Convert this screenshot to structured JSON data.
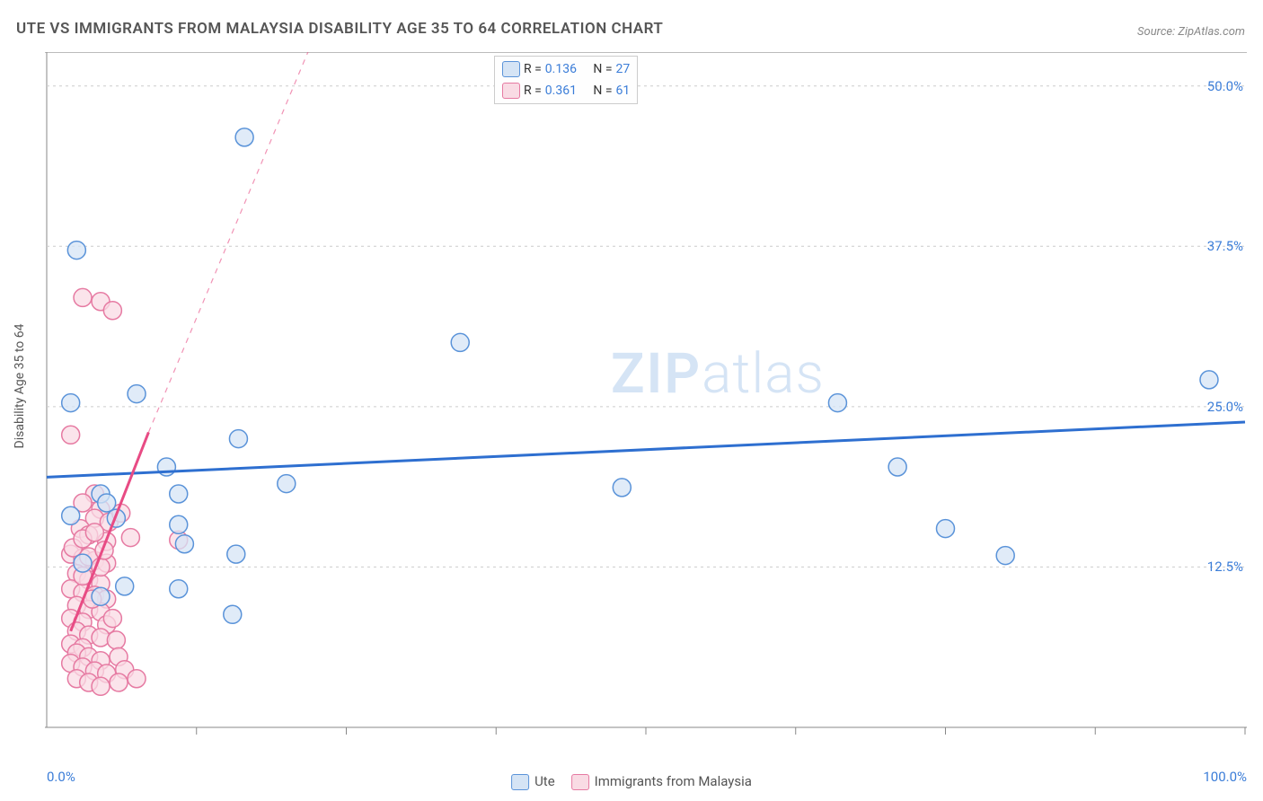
{
  "title": "UTE VS IMMIGRANTS FROM MALAYSIA DISABILITY AGE 35 TO 64 CORRELATION CHART",
  "source": "Source: ZipAtlas.com",
  "y_axis_label": "Disability Age 35 to 64",
  "watermark_bold": "ZIP",
  "watermark_light": "atlas",
  "chart": {
    "type": "scatter",
    "xlim": [
      0,
      100
    ],
    "ylim": [
      0,
      52.5
    ],
    "x_ticks": {
      "min": "0.0%",
      "max": "100.0%"
    },
    "y_ticks": [
      {
        "value": 12.5,
        "label": "12.5%"
      },
      {
        "value": 25.0,
        "label": "25.0%"
      },
      {
        "value": 37.5,
        "label": "37.5%"
      },
      {
        "value": 50.0,
        "label": "50.0%"
      }
    ],
    "x_grid_minor": [
      12.5,
      25,
      37.5,
      50,
      62.5,
      75,
      87.5,
      100
    ],
    "series": [
      {
        "name": "Ute",
        "marker_fill": "#d5e4f5",
        "marker_stroke": "#5a93d9",
        "line_color": "#2e6fd0",
        "marker_radius": 10,
        "R": "0.136",
        "N": "27",
        "trend": {
          "x1": 0,
          "y1": 19.5,
          "x2": 100,
          "y2": 23.8,
          "dash_from_x": 100
        },
        "points": [
          [
            2.5,
            37.2
          ],
          [
            16.5,
            46.0
          ],
          [
            7.5,
            26.0
          ],
          [
            2.0,
            25.3
          ],
          [
            34.5,
            30.0
          ],
          [
            16.0,
            22.5
          ],
          [
            10.0,
            20.3
          ],
          [
            4.5,
            18.2
          ],
          [
            11.0,
            18.2
          ],
          [
            11.0,
            15.8
          ],
          [
            5.0,
            17.5
          ],
          [
            5.8,
            16.3
          ],
          [
            11.5,
            14.3
          ],
          [
            15.8,
            13.5
          ],
          [
            20.0,
            19.0
          ],
          [
            3.0,
            12.8
          ],
          [
            6.5,
            11.0
          ],
          [
            4.5,
            10.2
          ],
          [
            11.0,
            10.8
          ],
          [
            15.5,
            8.8
          ],
          [
            48.0,
            18.7
          ],
          [
            66.0,
            25.3
          ],
          [
            71.0,
            20.3
          ],
          [
            75.0,
            15.5
          ],
          [
            80.0,
            13.4
          ],
          [
            97.0,
            27.1
          ],
          [
            2.0,
            16.5
          ]
        ]
      },
      {
        "name": "Immigrants from Malaysia",
        "marker_fill": "#f9dbe4",
        "marker_stroke": "#e67aa2",
        "line_color": "#e84b84",
        "marker_radius": 10,
        "R": "0.361",
        "N": "61",
        "trend": {
          "x1": 2.0,
          "y1": 7.5,
          "x2": 8.5,
          "y2": 23.0,
          "dash_to_x": 8.5,
          "dash_x2": 26,
          "dash_y2": 62
        },
        "points": [
          [
            3.0,
            33.5
          ],
          [
            4.5,
            33.2
          ],
          [
            5.5,
            32.5
          ],
          [
            2.0,
            22.8
          ],
          [
            4.0,
            18.2
          ],
          [
            3.0,
            17.5
          ],
          [
            4.5,
            17.0
          ],
          [
            4.0,
            16.3
          ],
          [
            2.8,
            15.5
          ],
          [
            3.5,
            15.0
          ],
          [
            5.0,
            14.5
          ],
          [
            7.0,
            14.8
          ],
          [
            11.0,
            14.6
          ],
          [
            2.0,
            13.5
          ],
          [
            3.0,
            13.2
          ],
          [
            4.0,
            13.0
          ],
          [
            5.0,
            12.8
          ],
          [
            2.5,
            12.0
          ],
          [
            3.5,
            11.5
          ],
          [
            4.5,
            11.2
          ],
          [
            2.0,
            10.8
          ],
          [
            3.0,
            10.5
          ],
          [
            4.0,
            10.3
          ],
          [
            5.0,
            10.0
          ],
          [
            2.5,
            9.5
          ],
          [
            3.5,
            9.2
          ],
          [
            4.5,
            9.0
          ],
          [
            2.0,
            8.5
          ],
          [
            3.0,
            8.2
          ],
          [
            5.0,
            8.0
          ],
          [
            2.5,
            7.5
          ],
          [
            3.5,
            7.2
          ],
          [
            4.5,
            7.0
          ],
          [
            2.0,
            6.5
          ],
          [
            3.0,
            6.2
          ],
          [
            5.8,
            6.8
          ],
          [
            2.5,
            5.8
          ],
          [
            3.5,
            5.5
          ],
          [
            4.5,
            5.2
          ],
          [
            6.0,
            5.5
          ],
          [
            2.0,
            5.0
          ],
          [
            3.0,
            4.7
          ],
          [
            4.0,
            4.4
          ],
          [
            5.0,
            4.2
          ],
          [
            6.5,
            4.5
          ],
          [
            2.5,
            3.8
          ],
          [
            3.5,
            3.5
          ],
          [
            4.5,
            3.2
          ],
          [
            6.0,
            3.5
          ],
          [
            7.5,
            3.8
          ],
          [
            3.0,
            11.8
          ],
          [
            3.5,
            13.3
          ],
          [
            4.5,
            12.5
          ],
          [
            2.2,
            14.0
          ],
          [
            3.0,
            14.7
          ],
          [
            5.2,
            16.0
          ],
          [
            4.0,
            15.2
          ],
          [
            6.2,
            16.7
          ],
          [
            4.8,
            13.8
          ],
          [
            3.8,
            10.0
          ],
          [
            5.5,
            8.5
          ]
        ]
      }
    ],
    "plot_bg": "#ffffff",
    "grid_color": "#cccccc",
    "axis_color": "#888888",
    "border_top_color": "#bbbbbb"
  },
  "top_legend": {
    "rows": [
      {
        "swatch_fill": "#d5e4f5",
        "swatch_stroke": "#5a93d9",
        "r_label": "R =",
        "r_value": "0.136",
        "n_label": "N =",
        "n_value": "27"
      },
      {
        "swatch_fill": "#f9dbe4",
        "swatch_stroke": "#e67aa2",
        "r_label": "R =",
        "r_value": "0.361",
        "n_label": "N =",
        "n_value": "61"
      }
    ]
  },
  "bottom_legend": {
    "items": [
      {
        "swatch_fill": "#d5e4f5",
        "swatch_stroke": "#5a93d9",
        "label": "Ute"
      },
      {
        "swatch_fill": "#f9dbe4",
        "swatch_stroke": "#e67aa2",
        "label": "Immigrants from Malaysia"
      }
    ]
  }
}
